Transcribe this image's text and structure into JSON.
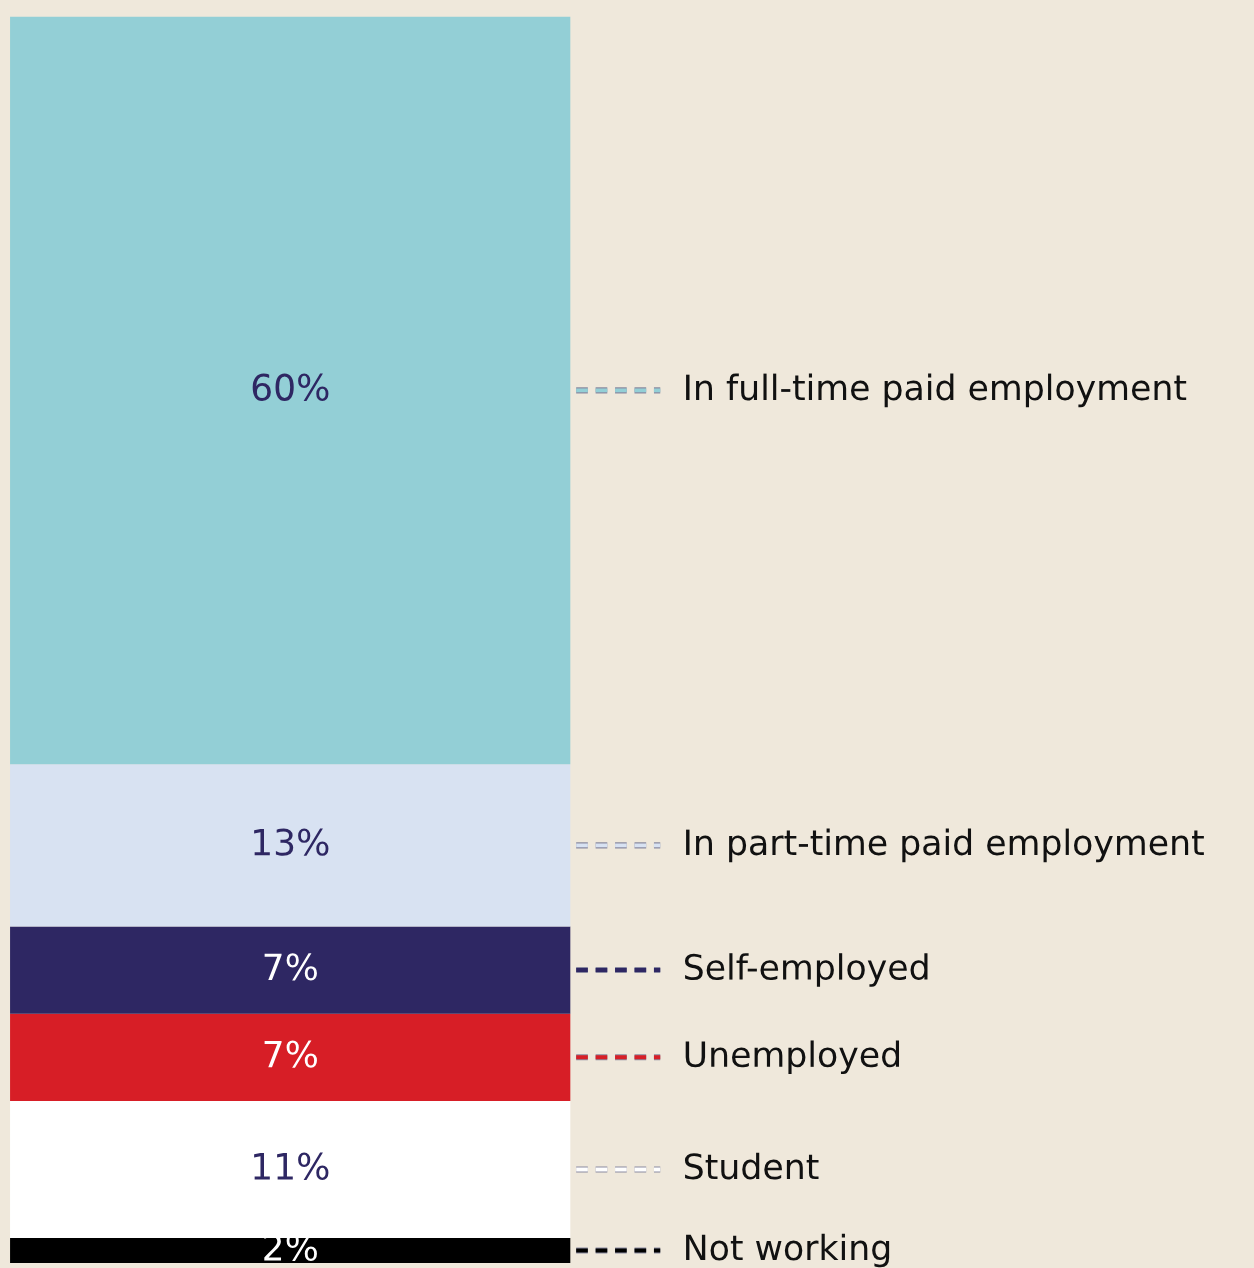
{
  "chart_data": {
    "type": "bar",
    "stacked": true,
    "categories": [
      null
    ],
    "legend": "right",
    "series": [
      {
        "name": "Not working",
        "color": "#000000",
        "values": [
          2
        ],
        "value_labels": [
          "2%"
        ]
      },
      {
        "name": "Student",
        "color": "#ffffff",
        "values": [
          11
        ],
        "value_labels": [
          "11%"
        ]
      },
      {
        "name": "Unemployed",
        "color": "#d71e26",
        "values": [
          7
        ],
        "value_labels": [
          "7%"
        ]
      },
      {
        "name": "Self-employed",
        "color": "#2e2763",
        "values": [
          7
        ],
        "value_labels": [
          "7%"
        ]
      },
      {
        "name": "In part-time paid employment",
        "color": "#d8e2f2",
        "values": [
          13
        ],
        "value_labels": [
          "13%"
        ]
      },
      {
        "name": "In full-time paid employment",
        "color": "#93cfd6",
        "values": [
          60
        ],
        "value_labels": [
          "60%"
        ]
      }
    ]
  }
}
